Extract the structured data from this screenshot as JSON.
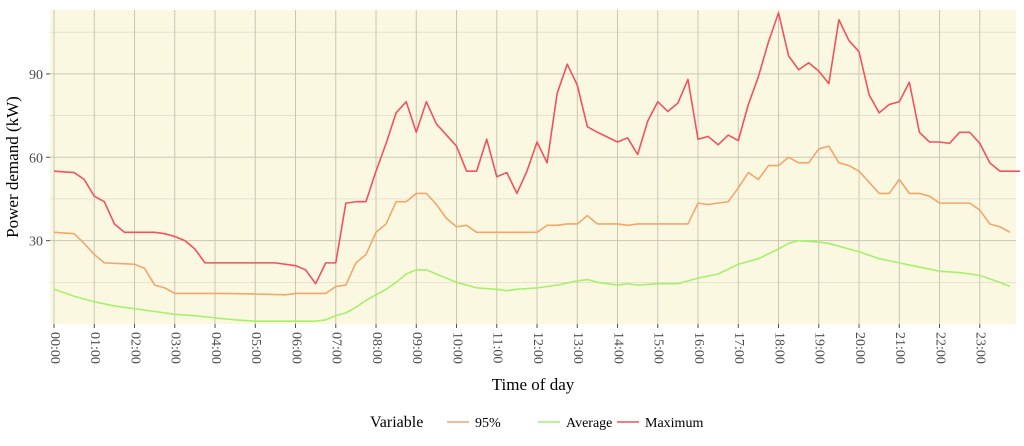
{
  "chart_data": {
    "type": "line",
    "xlabel": "Time of day",
    "ylabel": "Power demand (kW)",
    "xlim": [
      -0.1,
      23.9
    ],
    "ylim": [
      0,
      113
    ],
    "x_ticks": [
      "00:00",
      "01:00",
      "02:00",
      "03:00",
      "04:00",
      "05:00",
      "06:00",
      "07:00",
      "08:00",
      "09:00",
      "10:00",
      "11:00",
      "12:00",
      "13:00",
      "14:00",
      "15:00",
      "16:00",
      "17:00",
      "18:00",
      "19:00",
      "20:00",
      "21:00",
      "22:00",
      "23:00"
    ],
    "y_ticks": [
      30,
      60,
      90
    ],
    "grid": true,
    "background": "#fbf8e2",
    "legend": {
      "title": "Variable",
      "position": "bottom"
    },
    "series": [
      {
        "name": "95%",
        "color": "#f2a66b",
        "points": [
          [
            0,
            33
          ],
          [
            0.5,
            32.5
          ],
          [
            0.75,
            29
          ],
          [
            1,
            25
          ],
          [
            1.25,
            22
          ],
          [
            2,
            21.5
          ],
          [
            2.25,
            20
          ],
          [
            2.5,
            14
          ],
          [
            2.75,
            13
          ],
          [
            3,
            11
          ],
          [
            4,
            11
          ],
          [
            5,
            10.8
          ],
          [
            5.75,
            10.5
          ],
          [
            6,
            11
          ],
          [
            6.75,
            11
          ],
          [
            7,
            13.5
          ],
          [
            7.25,
            14
          ],
          [
            7.5,
            22
          ],
          [
            7.75,
            25
          ],
          [
            8,
            33
          ],
          [
            8.25,
            36
          ],
          [
            8.5,
            44
          ],
          [
            8.75,
            44
          ],
          [
            9,
            47
          ],
          [
            9.25,
            47
          ],
          [
            9.5,
            43
          ],
          [
            9.75,
            38
          ],
          [
            10,
            35
          ],
          [
            10.25,
            35.5
          ],
          [
            10.5,
            33
          ],
          [
            11,
            33
          ],
          [
            12,
            33
          ],
          [
            12.25,
            35.5
          ],
          [
            12.5,
            35.5
          ],
          [
            12.75,
            36
          ],
          [
            13,
            36
          ],
          [
            13.25,
            39
          ],
          [
            13.5,
            36
          ],
          [
            14,
            36
          ],
          [
            14.25,
            35.5
          ],
          [
            14.5,
            36
          ],
          [
            15,
            36
          ],
          [
            15.5,
            36
          ],
          [
            15.75,
            36
          ],
          [
            16,
            43.5
          ],
          [
            16.25,
            43
          ],
          [
            16.5,
            43.5
          ],
          [
            16.75,
            44
          ],
          [
            17,
            49
          ],
          [
            17.25,
            54.5
          ],
          [
            17.5,
            52
          ],
          [
            17.75,
            57
          ],
          [
            18,
            57
          ],
          [
            18.25,
            60
          ],
          [
            18.5,
            58
          ],
          [
            18.75,
            58
          ],
          [
            19,
            63
          ],
          [
            19.25,
            64
          ],
          [
            19.5,
            58
          ],
          [
            19.75,
            57
          ],
          [
            20,
            55
          ],
          [
            20.25,
            51
          ],
          [
            20.5,
            47
          ],
          [
            20.75,
            47
          ],
          [
            21,
            52
          ],
          [
            21.25,
            47
          ],
          [
            21.5,
            47
          ],
          [
            21.75,
            46
          ],
          [
            22,
            43.5
          ],
          [
            22.5,
            43.5
          ],
          [
            22.75,
            43.5
          ],
          [
            23,
            41
          ],
          [
            23.25,
            36
          ],
          [
            23.5,
            35
          ],
          [
            23.75,
            33
          ]
        ]
      },
      {
        "name": "Average",
        "color": "#a6f06b",
        "points": [
          [
            0,
            12.5
          ],
          [
            0.5,
            10
          ],
          [
            1,
            8
          ],
          [
            1.5,
            6.5
          ],
          [
            2,
            5.5
          ],
          [
            2.5,
            4.5
          ],
          [
            3,
            3.5
          ],
          [
            3.5,
            3
          ],
          [
            4,
            2.2
          ],
          [
            4.5,
            1.5
          ],
          [
            5,
            1
          ],
          [
            5.5,
            1
          ],
          [
            6,
            1
          ],
          [
            6.5,
            1
          ],
          [
            6.75,
            1.5
          ],
          [
            7,
            3
          ],
          [
            7.25,
            4
          ],
          [
            7.5,
            6
          ],
          [
            7.75,
            8.5
          ],
          [
            8,
            10.5
          ],
          [
            8.25,
            12.5
          ],
          [
            8.5,
            15
          ],
          [
            8.75,
            18
          ],
          [
            9,
            19.5
          ],
          [
            9.25,
            19.5
          ],
          [
            9.5,
            18
          ],
          [
            10,
            15
          ],
          [
            10.5,
            13
          ],
          [
            11,
            12.5
          ],
          [
            11.25,
            12
          ],
          [
            11.5,
            12.5
          ],
          [
            12,
            13
          ],
          [
            12.5,
            14
          ],
          [
            13,
            15.5
          ],
          [
            13.25,
            16
          ],
          [
            13.5,
            15
          ],
          [
            14,
            14
          ],
          [
            14.25,
            14.5
          ],
          [
            14.5,
            14
          ],
          [
            15,
            14.5
          ],
          [
            15.5,
            14.5
          ],
          [
            16,
            16.5
          ],
          [
            16.5,
            18
          ],
          [
            17,
            21.5
          ],
          [
            17.5,
            23.5
          ],
          [
            18,
            27
          ],
          [
            18.25,
            29
          ],
          [
            18.5,
            30
          ],
          [
            19,
            29.5
          ],
          [
            19.25,
            29
          ],
          [
            19.5,
            28
          ],
          [
            20,
            26
          ],
          [
            20.5,
            23.5
          ],
          [
            21,
            22
          ],
          [
            21.5,
            20.5
          ],
          [
            22,
            19
          ],
          [
            22.5,
            18.5
          ],
          [
            23,
            17.5
          ],
          [
            23.5,
            15
          ],
          [
            23.75,
            13.5
          ]
        ]
      },
      {
        "name": "Maximum",
        "color": "#f0535e",
        "points": [
          [
            0,
            55
          ],
          [
            0.5,
            54.5
          ],
          [
            0.75,
            52
          ],
          [
            1,
            46
          ],
          [
            1.25,
            44
          ],
          [
            1.5,
            36
          ],
          [
            1.75,
            33
          ],
          [
            2,
            33
          ],
          [
            2.5,
            33
          ],
          [
            2.75,
            32.5
          ],
          [
            3,
            31.5
          ],
          [
            3.25,
            30
          ],
          [
            3.5,
            27
          ],
          [
            3.75,
            22
          ],
          [
            4,
            22
          ],
          [
            4.5,
            22
          ],
          [
            5,
            22
          ],
          [
            5.5,
            22
          ],
          [
            6,
            21
          ],
          [
            6.25,
            19.5
          ],
          [
            6.5,
            14.5
          ],
          [
            6.75,
            22
          ],
          [
            7,
            22
          ],
          [
            7.25,
            43.5
          ],
          [
            7.5,
            44
          ],
          [
            7.75,
            44
          ],
          [
            8,
            55
          ],
          [
            8.25,
            65
          ],
          [
            8.5,
            76
          ],
          [
            8.75,
            80
          ],
          [
            9,
            69
          ],
          [
            9.25,
            80
          ],
          [
            9.5,
            72
          ],
          [
            10,
            64
          ],
          [
            10.25,
            55
          ],
          [
            10.5,
            55
          ],
          [
            10.75,
            66.5
          ],
          [
            11,
            53
          ],
          [
            11.25,
            54.5
          ],
          [
            11.5,
            47
          ],
          [
            11.75,
            55
          ],
          [
            12,
            65.5
          ],
          [
            12.25,
            58
          ],
          [
            12.5,
            83
          ],
          [
            12.75,
            93.5
          ],
          [
            13,
            86
          ],
          [
            13.25,
            71
          ],
          [
            13.5,
            69
          ],
          [
            14,
            65.5
          ],
          [
            14.25,
            67
          ],
          [
            14.5,
            61
          ],
          [
            14.75,
            73
          ],
          [
            15,
            80
          ],
          [
            15.25,
            76.5
          ],
          [
            15.5,
            79.5
          ],
          [
            15.75,
            88
          ],
          [
            16,
            66.5
          ],
          [
            16.25,
            67.5
          ],
          [
            16.5,
            64.5
          ],
          [
            16.75,
            68
          ],
          [
            17,
            66
          ],
          [
            17.25,
            79
          ],
          [
            17.5,
            89
          ],
          [
            17.75,
            101.5
          ],
          [
            18,
            112
          ],
          [
            18.25,
            96.5
          ],
          [
            18.5,
            91.5
          ],
          [
            18.75,
            94
          ],
          [
            19,
            91
          ],
          [
            19.25,
            86.5
          ],
          [
            19.5,
            109.5
          ],
          [
            19.75,
            102
          ],
          [
            20,
            98
          ],
          [
            20.25,
            82.5
          ],
          [
            20.5,
            76
          ],
          [
            20.75,
            79
          ],
          [
            21,
            80
          ],
          [
            21.25,
            87
          ],
          [
            21.5,
            69
          ],
          [
            21.75,
            65.5
          ],
          [
            22,
            65.5
          ],
          [
            22.25,
            65
          ],
          [
            22.5,
            69
          ],
          [
            22.75,
            69
          ],
          [
            23,
            65
          ],
          [
            23.25,
            58
          ],
          [
            23.5,
            55
          ],
          [
            23.75,
            55
          ],
          [
            24,
            55
          ]
        ]
      }
    ]
  }
}
